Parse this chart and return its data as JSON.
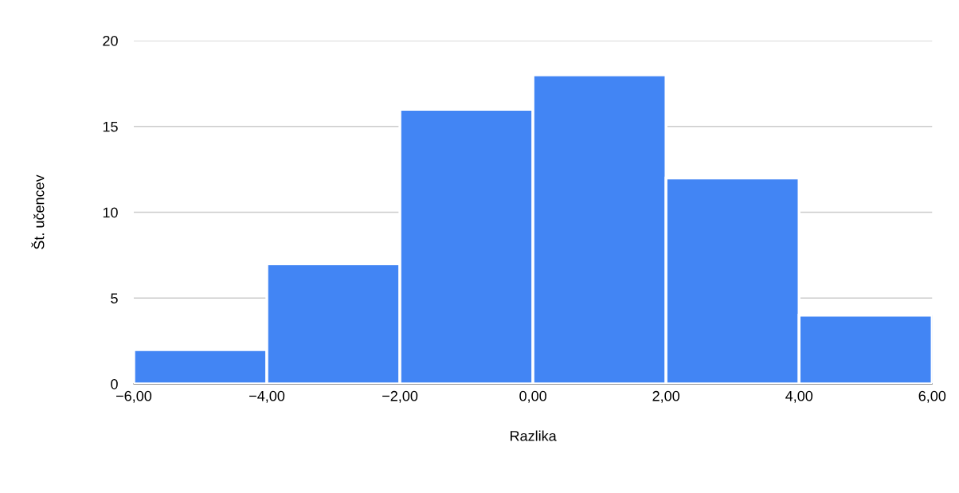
{
  "chart_data": {
    "type": "histogram",
    "xlabel": "Razlika",
    "ylabel": "Št. učencev",
    "bins": [
      -6,
      -4,
      -2,
      0,
      2,
      4,
      6
    ],
    "values": [
      2,
      7,
      16,
      18,
      12,
      4
    ],
    "color": "#4285f4",
    "xlim": [
      -6,
      6
    ],
    "xticks": [
      {
        "value": -6,
        "label": "−6,00"
      },
      {
        "value": -4,
        "label": "−4,00"
      },
      {
        "value": -2,
        "label": "−2,00"
      },
      {
        "value": 0,
        "label": "0,00"
      },
      {
        "value": 2,
        "label": "2,00"
      },
      {
        "value": 4,
        "label": "4,00"
      },
      {
        "value": 6,
        "label": "6,00"
      }
    ],
    "ylim": [
      0,
      20
    ],
    "yticks": [
      0,
      5,
      10,
      15,
      20
    ],
    "grid": "y"
  }
}
